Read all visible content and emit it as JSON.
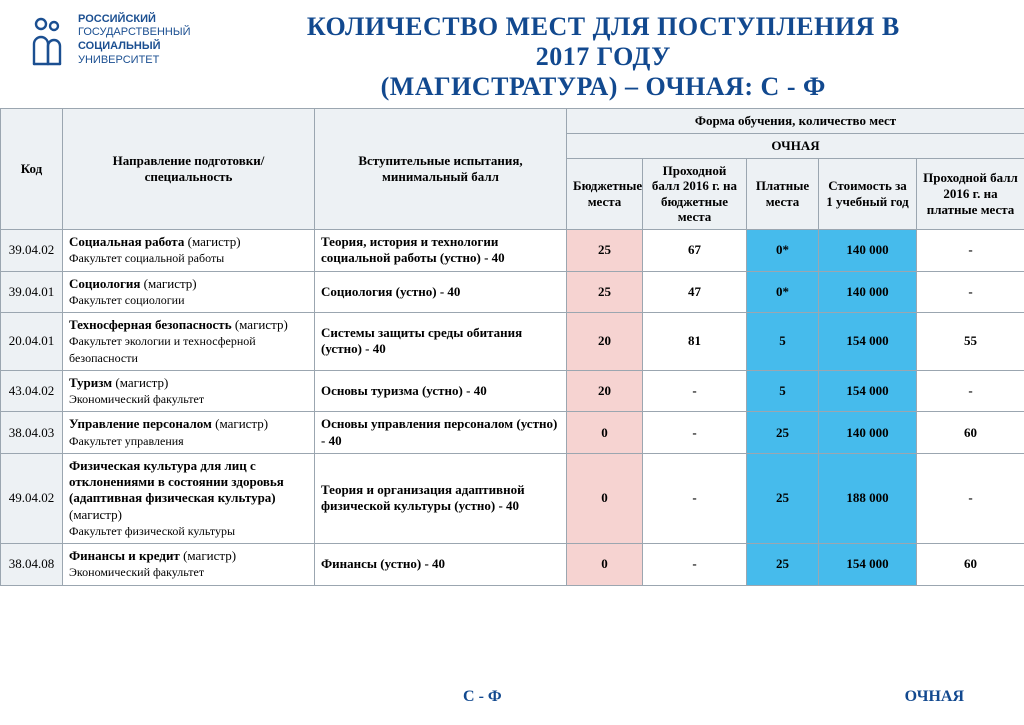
{
  "logo": {
    "line1": "РОССИЙСКИЙ",
    "line2": "ГОСУДАРСТВЕННЫЙ",
    "line3": "СОЦИАЛЬНЫЙ",
    "line4": "УНИВЕРСИТЕТ",
    "icon_color": "#1b4f91"
  },
  "title": {
    "line1": "КОЛИЧЕСТВО МЕСТ ДЛЯ ПОСТУПЛЕНИЯ В",
    "line2": "2017 ГОДУ",
    "line3": "(МАГИСТРАТУРА) – ОЧНАЯ: С - Ф",
    "color": "#12498f",
    "fontsize": 26
  },
  "header": {
    "code": "Код",
    "spec": "Направление подготовки/ специальность",
    "exam": "Вступительные испытания, минимальный балл",
    "form_header": "Форма обучения, количество мест",
    "ochnaya": "ОЧНАЯ",
    "budget": "Бюджетные места",
    "pass2016": "Проходной балл 2016 г. на бюджетные места",
    "paid": "Платные места",
    "cost": "Стоимость за 1 учебный год",
    "passpaid": "Проходной балл 2016 г. на платные места"
  },
  "colors": {
    "th_bg": "#edf1f4",
    "border": "#9ba6b0",
    "pink": "#f6d3d1",
    "head_pink": "#f3e6e5",
    "cyan": "#46bbec",
    "white": "#ffffff",
    "title": "#12498f"
  },
  "rows": [
    {
      "code": "39.04.02",
      "title": "Социальная работа",
      "degree": "(магистр)",
      "faculty": "Факультет социальной работы",
      "exam": "Теория, история и технологии социальной работы (устно) - 40",
      "budget": "25",
      "pass": "67",
      "paid": "0*",
      "cost": "140 000",
      "passpaid": "-"
    },
    {
      "code": "39.04.01",
      "title": "Социология",
      "degree": "(магистр)",
      "faculty": "Факультет социологии",
      "exam": "Социология (устно) - 40",
      "budget": "25",
      "pass": "47",
      "paid": "0*",
      "cost": "140 000",
      "passpaid": "-"
    },
    {
      "code": "20.04.01",
      "title": "Техносферная безопасность",
      "degree": "(магистр)",
      "faculty": "Факультет экологии и техносферной безопасности",
      "exam": "Системы защиты среды обитания (устно) - 40",
      "budget": "20",
      "pass": "81",
      "paid": "5",
      "cost": "154 000",
      "passpaid": "55"
    },
    {
      "code": "43.04.02",
      "title": "Туризм",
      "degree": "(магистр)",
      "faculty": "Экономический факультет",
      "exam": "Основы туризма (устно) - 40",
      "budget": "20",
      "pass": "-",
      "paid": "5",
      "cost": "154 000",
      "passpaid": "-"
    },
    {
      "code": "38.04.03",
      "title": "Управление персоналом",
      "degree": "(магистр)",
      "faculty": "Факультет управления",
      "exam": "Основы управления персоналом (устно) - 40",
      "budget": "0",
      "pass": "-",
      "paid": "25",
      "cost": "140 000",
      "passpaid": "60"
    },
    {
      "code": "49.04.02",
      "title": "Физическая культура для лиц с отклонениями в состоянии здоровья (адаптивная физическая культура)",
      "degree": "(магистр)",
      "faculty": "Факультет физической культуры",
      "exam": "Теория и организация адаптивной физической культуры (устно) - 40",
      "budget": "0",
      "pass": "-",
      "paid": "25",
      "cost": "188 000",
      "passpaid": "-"
    },
    {
      "code": "38.04.08",
      "title": "Финансы и кредит",
      "degree": "(магистр)",
      "faculty": "Экономический факультет",
      "exam": "Финансы (устно) - 40",
      "budget": "0",
      "pass": "-",
      "paid": "25",
      "cost": "154 000",
      "passpaid": "60"
    }
  ],
  "footer": {
    "left": "С - Ф",
    "right": "ОЧНАЯ"
  }
}
